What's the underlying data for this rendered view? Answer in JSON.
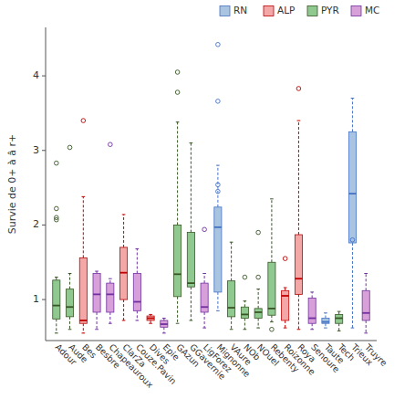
{
  "chart_data": {
    "type": "box",
    "ylabel": "Survie de 0+ à â r+",
    "ylim": [
      0.45,
      4.65
    ],
    "yticks": [
      1,
      2,
      3,
      4
    ],
    "legend": "upper right",
    "categories": [
      "Adour",
      "Aude",
      "Bes",
      "Besbre",
      "Chapeauroux",
      "ClarZa",
      "Couze.Pavin",
      "Dives",
      "Epie",
      "GAzun",
      "GGavernie",
      "LigForez",
      "Mignonne",
      "VAure",
      "NOb",
      "NOuel",
      "Rebenty",
      "Roizonne",
      "Roya",
      "Senoure",
      "Taute",
      "Tech",
      "Trieux",
      "Truyre"
    ],
    "groups": [
      "PYR",
      "PYR",
      "ALP",
      "MC",
      "MC",
      "ALP",
      "MC",
      "ALP",
      "MC",
      "PYR",
      "PYR",
      "MC",
      "RN",
      "PYR",
      "PYR",
      "PYR",
      "PYR",
      "ALP",
      "ALP",
      "MC",
      "RN",
      "PYR",
      "RN",
      "MC"
    ],
    "q1": [
      0.74,
      0.77,
      0.68,
      0.83,
      0.83,
      1.0,
      0.85,
      0.72,
      0.63,
      1.04,
      1.17,
      0.83,
      1.1,
      0.77,
      0.75,
      0.75,
      0.79,
      0.72,
      1.07,
      0.68,
      0.68,
      0.68,
      1.76,
      0.72
    ],
    "med": [
      0.92,
      0.9,
      0.72,
      1.07,
      1.07,
      1.36,
      0.97,
      0.75,
      0.67,
      1.34,
      1.22,
      0.9,
      1.97,
      0.89,
      0.8,
      0.83,
      0.88,
      1.05,
      1.28,
      0.75,
      0.7,
      0.75,
      2.42,
      0.82
    ],
    "q3": [
      1.26,
      1.14,
      1.56,
      1.35,
      1.22,
      1.7,
      1.35,
      0.78,
      0.72,
      2.0,
      1.9,
      1.22,
      2.24,
      1.25,
      0.9,
      0.88,
      1.5,
      1.12,
      1.87,
      1.02,
      0.75,
      0.8,
      3.25,
      1.12
    ],
    "whislo": [
      0.55,
      0.6,
      0.55,
      0.6,
      0.68,
      0.72,
      0.72,
      0.68,
      0.55,
      0.68,
      0.72,
      0.62,
      0.85,
      0.6,
      0.6,
      0.62,
      0.7,
      0.62,
      0.6,
      0.6,
      0.62,
      0.58,
      0.62,
      0.55
    ],
    "whishi": [
      1.3,
      1.35,
      2.38,
      1.38,
      1.28,
      2.14,
      1.68,
      0.8,
      0.75,
      3.38,
      3.1,
      1.35,
      2.8,
      1.77,
      0.98,
      1.14,
      2.35,
      1.16,
      3.4,
      1.1,
      0.82,
      0.84,
      3.7,
      1.35
    ],
    "fliers": [
      [
        2.83,
        2.22,
        2.1,
        2.07
      ],
      [
        3.04
      ],
      [
        3.4
      ],
      [],
      [
        3.08
      ],
      [],
      [],
      [],
      [],
      [
        3.78,
        4.05
      ],
      [],
      [
        1.94
      ],
      [
        4.42,
        3.66,
        2.54,
        2.45
      ],
      [],
      [
        1.3
      ],
      [
        1.3,
        1.9
      ],
      [
        0.6
      ],
      [
        1.55
      ],
      [
        3.83
      ],
      [],
      [],
      [],
      [
        1.8
      ],
      []
    ],
    "series": [
      {
        "name": "RN",
        "color": "#A8C4E0",
        "edge_color": "#4472C4"
      },
      {
        "name": "ALP",
        "color": "#F4A7A7",
        "edge_color": "#C00000"
      },
      {
        "name": "PYR",
        "color": "#90C990",
        "edge_color": "#375623"
      },
      {
        "name": "MC",
        "color": "#D8A0D8",
        "edge_color": "#7030A0"
      }
    ]
  }
}
